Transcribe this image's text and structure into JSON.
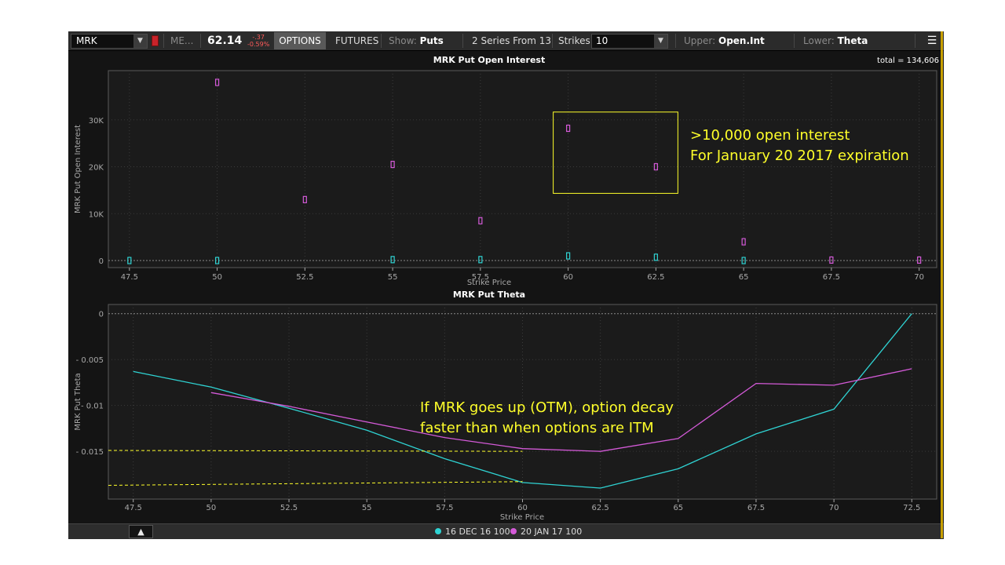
{
  "toolbar": {
    "symbol": "MRK",
    "exchange": "ME...",
    "price": "62.14",
    "change_abs": "-.37",
    "change_pct": "-0.59%",
    "options_tab": "OPTIONS",
    "futures_tab": "FUTURES",
    "show_label": "Show:",
    "show_value": "Puts",
    "series_label": "2 Series From 13",
    "strikes_label": "Strikes:",
    "strikes_value": "10",
    "upper_label": "Upper:",
    "upper_value": "Open.Int",
    "lower_label": "Lower:",
    "lower_value": "Theta",
    "menu_icon": "hamburger-menu-icon"
  },
  "colors": {
    "series1": "#2fd3d3",
    "series2": "#d45ad8",
    "annotation": "#ffff2a",
    "negative": "#ff5a5a"
  },
  "legend": [
    {
      "label": "16 DEC 16 100",
      "color": "#2fd3d3"
    },
    {
      "label": "20 JAN 17 100",
      "color": "#d45ad8"
    }
  ],
  "chart_data": [
    {
      "type": "scatter",
      "title": "MRK Put Open Interest",
      "total_label": "total = 134,606",
      "xlabel": "Strike Price",
      "ylabel": "MRK Put Open Interest",
      "x_ticks": [
        "47.5",
        "50",
        "52.5",
        "55",
        "57.5",
        "60",
        "62.5",
        "65",
        "67.5",
        "70"
      ],
      "y_ticks": [
        {
          "value": 0,
          "label": "0"
        },
        {
          "value": 10000,
          "label": "10K"
        },
        {
          "value": 20000,
          "label": "20K"
        },
        {
          "value": 30000,
          "label": "30K"
        }
      ],
      "xlim": [
        46.9,
        70.5
      ],
      "ylim": [
        -1500,
        40500
      ],
      "grid": true,
      "series": [
        {
          "name": "16 DEC 16 100",
          "color": "#2fd3d3",
          "x": [
            47.5,
            50,
            55,
            57.5,
            60,
            62.5,
            65
          ],
          "y": [
            0,
            0,
            200,
            200,
            1000,
            700,
            0
          ]
        },
        {
          "name": "20 JAN 17 100",
          "color": "#d45ad8",
          "x": [
            50,
            52.5,
            55,
            57.5,
            60,
            62.5,
            65,
            67.5,
            70
          ],
          "y": [
            38000,
            13000,
            20500,
            8500,
            28200,
            20000,
            4000,
            100,
            100
          ]
        }
      ],
      "annotations": [
        {
          "text": ">10,000 open interest",
          "color": "#ffff2a"
        },
        {
          "text": "For January 20 2017 expiration",
          "color": "#ffff2a"
        }
      ],
      "highlight_box": {
        "x": [
          60,
          62.5
        ],
        "y_data_range": [
          15000,
          31000
        ]
      }
    },
    {
      "type": "line",
      "title": "MRK Put Theta",
      "xlabel": "Strike Price",
      "ylabel": "MRK Put Theta",
      "x_ticks": [
        "47.5",
        "50",
        "52.5",
        "55",
        "57.5",
        "60",
        "62.5",
        "65",
        "67.5",
        "70",
        "72.5"
      ],
      "y_ticks": [
        {
          "value": 0,
          "label": "0"
        },
        {
          "value": -0.005,
          "label": "- 0.005"
        },
        {
          "value": -0.01,
          "label": "- 0.01"
        },
        {
          "value": -0.015,
          "label": "- 0.015"
        }
      ],
      "xlim": [
        46.7,
        73.3
      ],
      "ylim": [
        -0.0202,
        0.001
      ],
      "grid": true,
      "series": [
        {
          "name": "16 DEC 16 100",
          "color": "#2fd3d3",
          "x": [
            47.5,
            50,
            52.5,
            55,
            57.5,
            60,
            62.5,
            65,
            67.5,
            70,
            72.5
          ],
          "y": [
            -0.0063,
            -0.008,
            -0.0103,
            -0.0127,
            -0.0158,
            -0.0184,
            -0.019,
            -0.0169,
            -0.0131,
            -0.0104,
            0.0
          ]
        },
        {
          "name": "20 JAN 17 100",
          "color": "#d45ad8",
          "x": [
            50,
            52.5,
            55,
            57.5,
            60,
            62.5,
            65,
            67.5,
            70,
            72.5
          ],
          "y": [
            -0.0086,
            -0.0101,
            -0.0118,
            -0.0135,
            -0.0147,
            -0.015,
            -0.0136,
            -0.0076,
            -0.0078,
            -0.006
          ]
        }
      ],
      "annotations": [
        {
          "text": "If MRK goes up (OTM), option decay",
          "color": "#ffff2a"
        },
        {
          "text": "faster than when options are ITM",
          "color": "#ffff2a"
        }
      ],
      "dashed_guides": [
        {
          "color": "#ffff2a",
          "x": [
            46.7,
            60
          ],
          "y": [
            -0.0149,
            -0.015
          ]
        },
        {
          "color": "#ffff2a",
          "x": [
            46.7,
            60
          ],
          "y": [
            -0.0187,
            -0.0183
          ]
        }
      ]
    }
  ]
}
